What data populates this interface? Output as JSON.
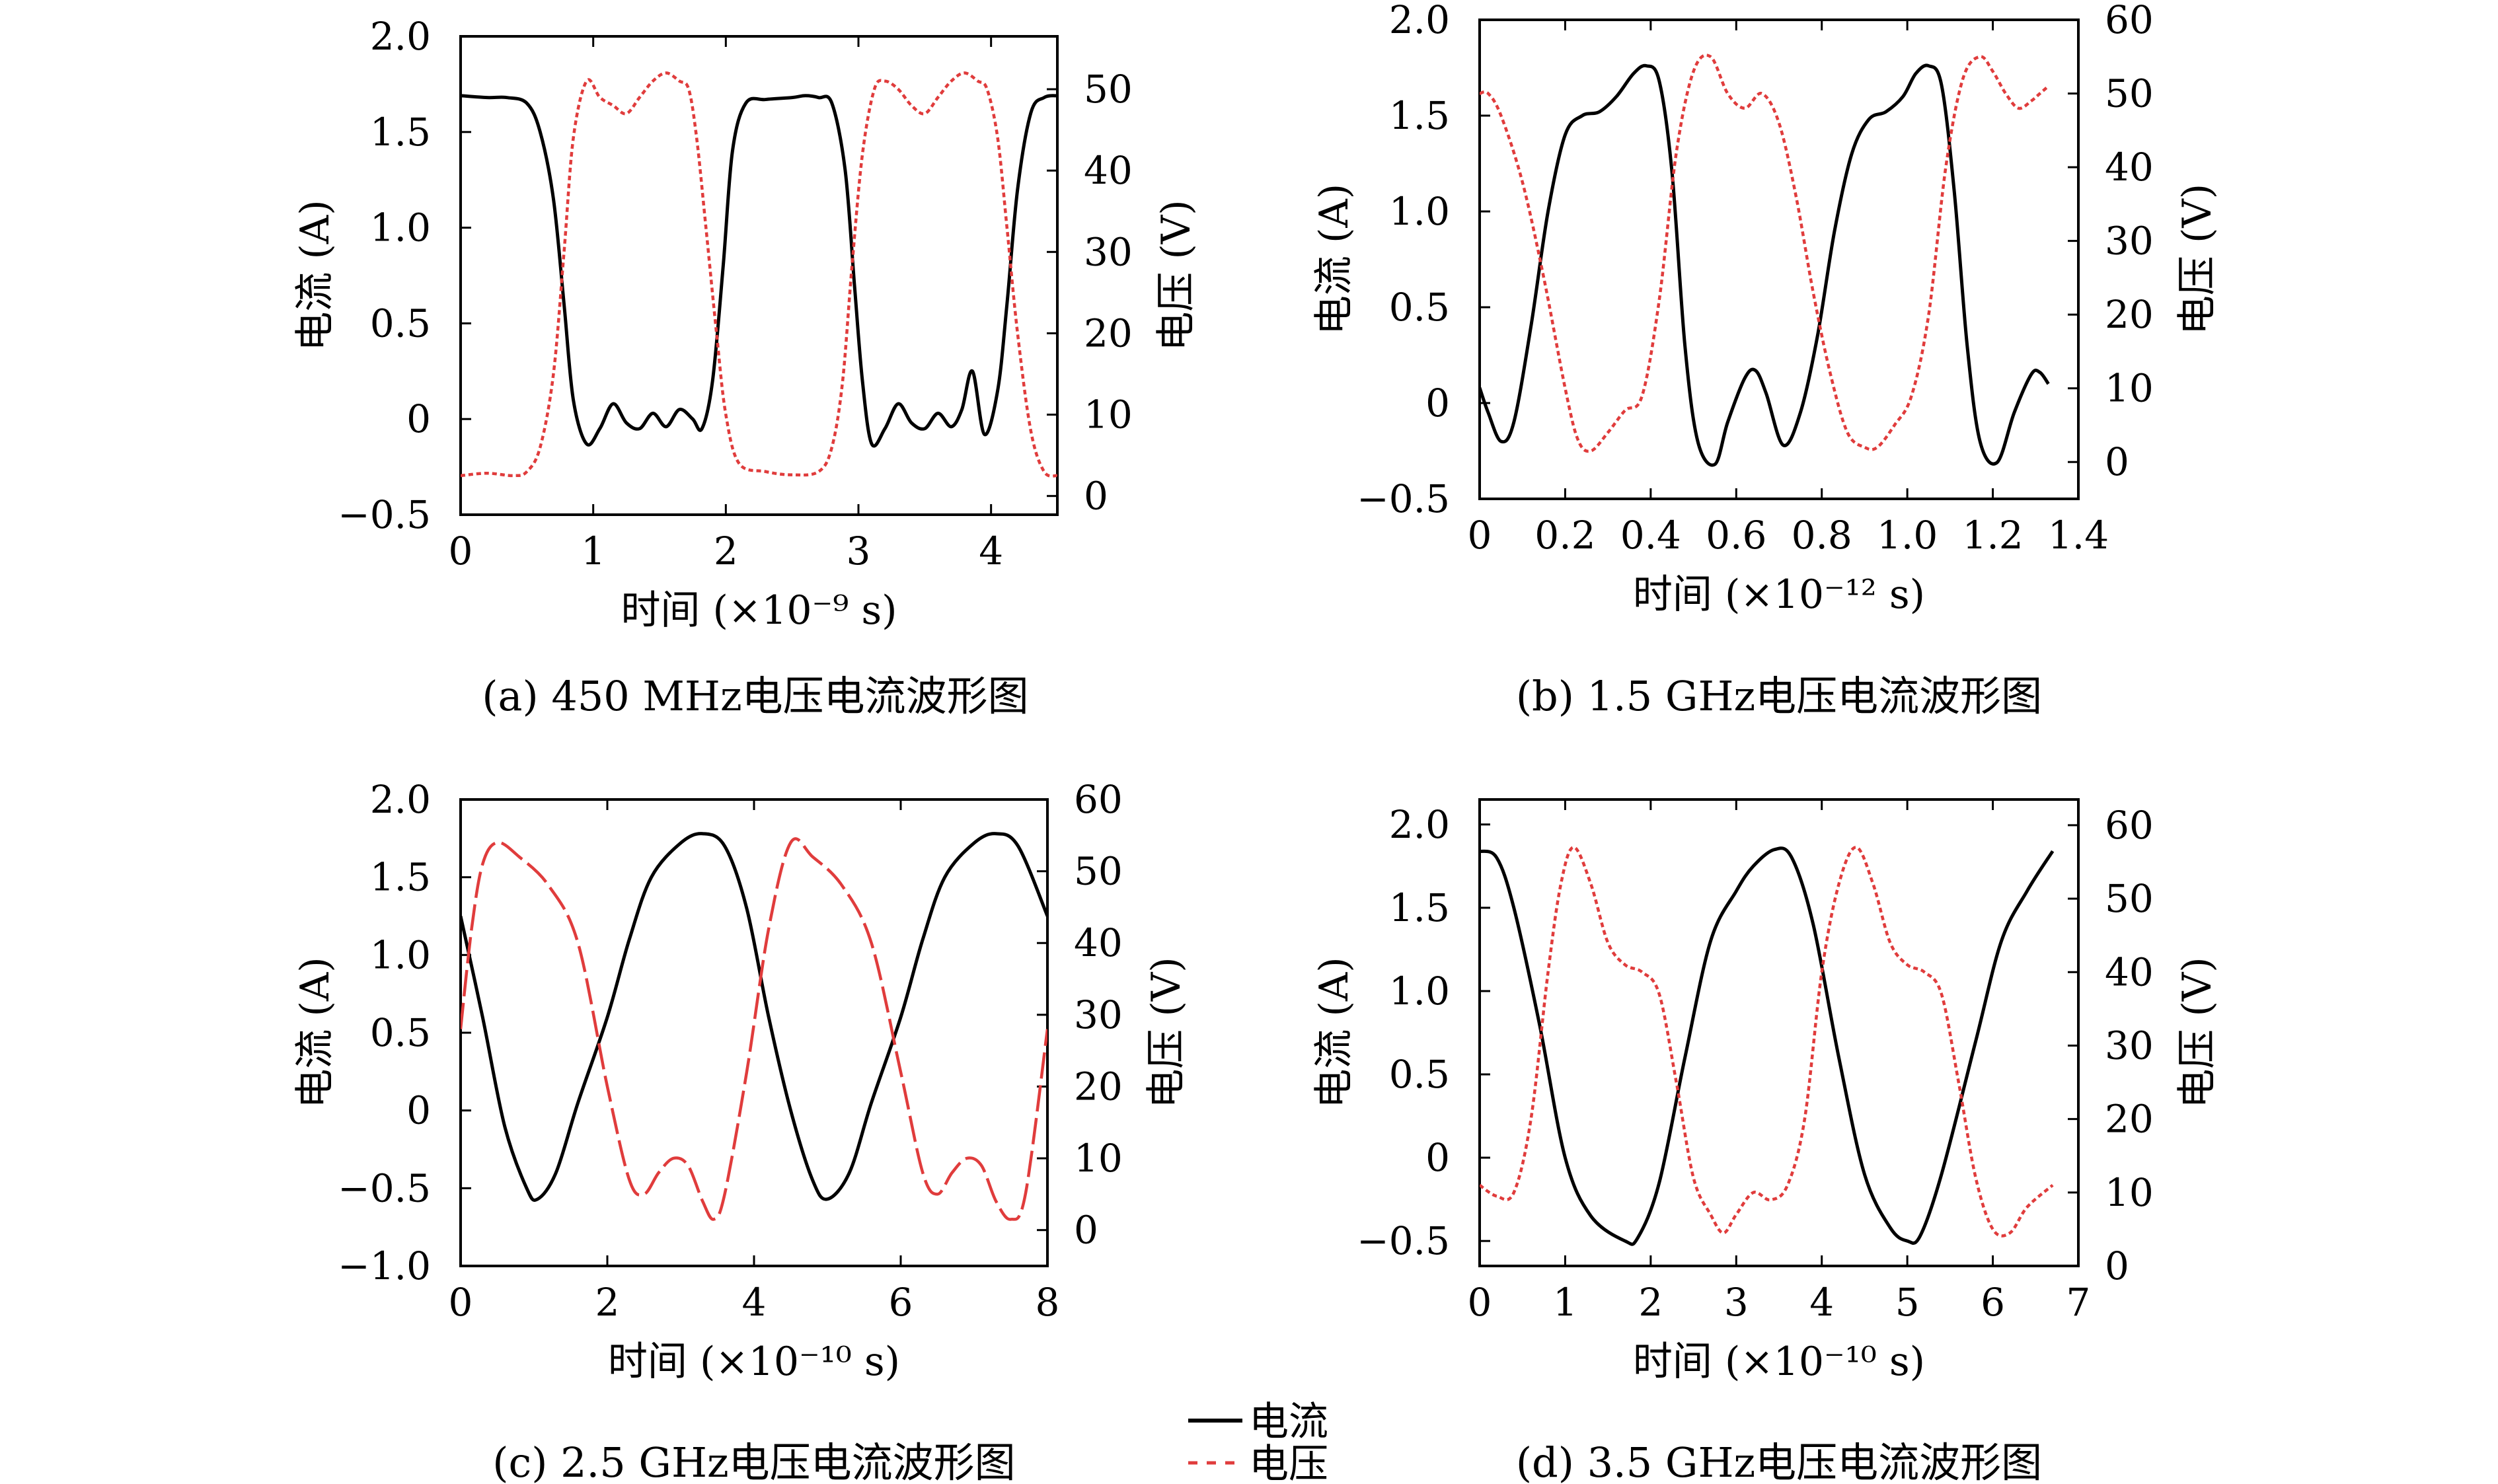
{
  "legend": {
    "current": "电流",
    "voltage": "电压"
  },
  "colors": {
    "current": "#000000",
    "voltage": "#e03c3c"
  },
  "chart_data": [
    {
      "type": "line",
      "caption": "(a) 450 MHz电压电流波形图",
      "xlabel": "时间 (×10⁻⁹ s)",
      "ylabel_left": "电流 (A)",
      "ylabel_right": "电压 (V)",
      "xlim": [
        0,
        4.5
      ],
      "ylim_left": [
        -0.5,
        2.0
      ],
      "ylim_right": [
        -2.3,
        56.5
      ],
      "xticks": [
        "0",
        "1",
        "2",
        "3",
        "4"
      ],
      "yticks_left": [
        "−0.5",
        "0",
        "0.5",
        "1.0",
        "1.5",
        "2.0"
      ],
      "yticks_right": [
        "0",
        "10",
        "20",
        "30",
        "40",
        "50"
      ],
      "series": [
        {
          "name": "电流",
          "axis": "left",
          "style": "solid",
          "x": [
            0,
            0.2,
            0.35,
            0.5,
            0.6,
            0.7,
            0.78,
            0.85,
            0.95,
            1.05,
            1.15,
            1.25,
            1.35,
            1.45,
            1.55,
            1.65,
            1.75,
            1.82,
            1.9,
            1.98,
            2.05,
            2.15,
            2.3,
            2.5,
            2.6,
            2.7,
            2.8,
            2.9,
            2.97,
            3.03,
            3.1,
            3.2,
            3.3,
            3.4,
            3.5,
            3.6,
            3.7,
            3.78,
            3.86,
            3.95,
            4.05,
            4.12,
            4.2,
            4.3,
            4.4,
            4.5
          ],
          "y": [
            1.69,
            1.68,
            1.68,
            1.65,
            1.5,
            1.15,
            0.6,
            0.1,
            -0.13,
            -0.05,
            0.08,
            -0.02,
            -0.05,
            0.03,
            -0.04,
            0.05,
            0,
            -0.05,
            0.2,
            0.8,
            1.4,
            1.65,
            1.67,
            1.68,
            1.69,
            1.68,
            1.65,
            1.3,
            0.7,
            0.2,
            -0.13,
            -0.05,
            0.08,
            -0.02,
            -0.05,
            0.03,
            -0.04,
            0.05,
            0.25,
            -0.08,
            0.15,
            0.6,
            1.2,
            1.6,
            1.68,
            1.69
          ]
        },
        {
          "name": "电压",
          "axis": "right",
          "style": "dotted",
          "x": [
            0,
            0.2,
            0.4,
            0.5,
            0.6,
            0.7,
            0.78,
            0.85,
            0.95,
            1.05,
            1.15,
            1.25,
            1.35,
            1.45,
            1.55,
            1.65,
            1.72,
            1.78,
            1.85,
            1.93,
            2.0,
            2.1,
            2.3,
            2.5,
            2.7,
            2.8,
            2.88,
            2.95,
            3.03,
            3.12,
            3.2,
            3.3,
            3.4,
            3.5,
            3.6,
            3.7,
            3.8,
            3.9,
            3.97,
            4.05,
            4.12,
            4.2,
            4.3,
            4.4,
            4.5
          ],
          "y": [
            2.5,
            2.8,
            2.5,
            3.0,
            6,
            15,
            30,
            44,
            51,
            49,
            48,
            47,
            49,
            51,
            52,
            51,
            50,
            44,
            33,
            20,
            10,
            4,
            3,
            2.6,
            3,
            6,
            14,
            28,
            42,
            50,
            51,
            50,
            48,
            47,
            49,
            51,
            52,
            51,
            50,
            44,
            33,
            20,
            8,
            3,
            2.5
          ]
        }
      ]
    },
    {
      "type": "line",
      "caption": "(b) 1.5 GHz电压电流波形图",
      "xlabel": "时间 (×10⁻¹² s)",
      "ylabel_left": "电流 (A)",
      "ylabel_right": "电压 (V)",
      "xlim": [
        0,
        1.4
      ],
      "ylim_left": [
        -0.5,
        2.0
      ],
      "ylim_right": [
        -5,
        60
      ],
      "xticks": [
        "0",
        "0.2",
        "0.4",
        "0.6",
        "0.8",
        "1.0",
        "1.2",
        "1.4"
      ],
      "yticks_left": [
        "−0.5",
        "0",
        "0.5",
        "1.0",
        "1.5",
        "2.0"
      ],
      "yticks_right": [
        "0",
        "10",
        "20",
        "30",
        "40",
        "50",
        "60"
      ],
      "series": [
        {
          "name": "电流",
          "axis": "left",
          "style": "solid",
          "x": [
            0,
            0.02,
            0.05,
            0.08,
            0.12,
            0.16,
            0.2,
            0.24,
            0.28,
            0.32,
            0.36,
            0.39,
            0.42,
            0.45,
            0.48,
            0.51,
            0.55,
            0.58,
            0.62,
            0.645,
            0.67,
            0.71,
            0.75,
            0.79,
            0.83,
            0.87,
            0.91,
            0.95,
            0.99,
            1.02,
            1.05,
            1.08,
            1.11,
            1.14,
            1.17,
            1.21,
            1.25,
            1.29,
            1.31,
            1.33
          ],
          "y": [
            0.08,
            -0.05,
            -0.2,
            -0.1,
            0.4,
            1.0,
            1.4,
            1.5,
            1.52,
            1.6,
            1.72,
            1.76,
            1.68,
            1.2,
            0.3,
            -0.2,
            -0.32,
            -0.1,
            0.13,
            0.17,
            0.05,
            -0.22,
            -0.05,
            0.35,
            0.9,
            1.3,
            1.48,
            1.52,
            1.6,
            1.72,
            1.76,
            1.66,
            1.1,
            0.3,
            -0.2,
            -0.31,
            -0.05,
            0.15,
            0.16,
            0.1
          ]
        },
        {
          "name": "电压",
          "axis": "right",
          "style": "dotted",
          "x": [
            0,
            0.02,
            0.05,
            0.1,
            0.15,
            0.2,
            0.23,
            0.26,
            0.3,
            0.34,
            0.38,
            0.42,
            0.46,
            0.5,
            0.54,
            0.58,
            0.62,
            0.66,
            0.7,
            0.74,
            0.78,
            0.82,
            0.86,
            0.9,
            0.93,
            0.97,
            1.01,
            1.05,
            1.09,
            1.13,
            1.17,
            1.2,
            1.23,
            1.26,
            1.29,
            1.31,
            1.33
          ],
          "y": [
            50,
            50,
            47,
            38,
            25,
            10,
            3,
            1.5,
            4,
            7,
            9,
            22,
            42,
            53,
            55,
            50,
            48,
            50,
            46,
            36,
            23,
            12,
            4,
            2,
            2,
            5,
            9,
            20,
            40,
            52,
            55,
            53,
            50,
            48,
            49,
            50,
            51
          ]
        }
      ]
    },
    {
      "type": "line",
      "caption": "(c) 2.5 GHz电压电流波形图",
      "xlabel": "时间 (×10⁻¹⁰ s)",
      "ylabel_left": "电流 (A)",
      "ylabel_right": "电压 (V)",
      "xlim": [
        0,
        8
      ],
      "ylim_left": [
        -1.0,
        2.0
      ],
      "ylim_right": [
        -5,
        60
      ],
      "xticks": [
        "0",
        "2",
        "4",
        "6",
        "8"
      ],
      "yticks_left": [
        "−1.0",
        "−0.5",
        "0",
        "0.5",
        "1.0",
        "1.5",
        "2.0"
      ],
      "yticks_right": [
        "0",
        "10",
        "20",
        "30",
        "40",
        "50",
        "60"
      ],
      "series": [
        {
          "name": "电流",
          "axis": "left",
          "style": "solid",
          "x": [
            0,
            0.3,
            0.6,
            0.9,
            1.05,
            1.3,
            1.6,
            2.0,
            2.3,
            2.6,
            3.0,
            3.3,
            3.6,
            3.9,
            4.2,
            4.5,
            4.8,
            5.0,
            5.3,
            5.6,
            6.0,
            6.3,
            6.6,
            7.0,
            7.3,
            7.6,
            8.0
          ],
          "y": [
            1.25,
            0.6,
            -0.1,
            -0.5,
            -0.57,
            -0.4,
            0.05,
            0.6,
            1.1,
            1.5,
            1.72,
            1.78,
            1.7,
            1.3,
            0.6,
            0,
            -0.45,
            -0.57,
            -0.4,
            0.05,
            0.6,
            1.1,
            1.5,
            1.72,
            1.78,
            1.7,
            1.25
          ]
        },
        {
          "name": "电压",
          "axis": "right",
          "style": "dashed",
          "x": [
            0,
            0.15,
            0.3,
            0.5,
            0.8,
            1.2,
            1.6,
            2.0,
            2.3,
            2.5,
            2.7,
            2.9,
            3.1,
            3.3,
            3.45,
            3.6,
            3.9,
            4.2,
            4.5,
            4.8,
            5.2,
            5.6,
            6.0,
            6.3,
            6.5,
            6.7,
            6.9,
            7.1,
            7.3,
            7.5,
            7.7,
            8.0
          ],
          "y": [
            28,
            42,
            51,
            54,
            52,
            48,
            40,
            20,
            7,
            5,
            8,
            10,
            9,
            4,
            1.5,
            5,
            22,
            42,
            54,
            52,
            48,
            40,
            22,
            8,
            5,
            8,
            10,
            9,
            4,
            1.5,
            5,
            28
          ]
        }
      ]
    },
    {
      "type": "line",
      "caption": "(d) 3.5 GHz电压电流波形图",
      "xlabel": "时间 (×10⁻¹⁰ s)",
      "ylabel_left": "电流 (A)",
      "ylabel_right": "电压 (V)",
      "xlim": [
        0,
        7
      ],
      "ylim_left": [
        -0.65,
        2.15
      ],
      "ylim_right": [
        0,
        63.5
      ],
      "xticks": [
        "0",
        "1",
        "2",
        "3",
        "4",
        "5",
        "6",
        "7"
      ],
      "yticks_left": [
        "−0.5",
        "0",
        "0.5",
        "1.0",
        "1.5",
        "2.0"
      ],
      "yticks_right": [
        "0",
        "10",
        "20",
        "30",
        "40",
        "50",
        "60"
      ],
      "series": [
        {
          "name": "电流",
          "axis": "left",
          "style": "solid",
          "x": [
            0,
            0.2,
            0.4,
            0.7,
            1.0,
            1.3,
            1.7,
            1.85,
            2.1,
            2.4,
            2.7,
            3.0,
            3.2,
            3.45,
            3.65,
            3.9,
            4.2,
            4.5,
            4.8,
            5.0,
            5.15,
            5.4,
            5.8,
            6.1,
            6.4,
            6.7
          ],
          "y": [
            1.84,
            1.8,
            1.5,
            0.8,
            0,
            -0.35,
            -0.5,
            -0.48,
            -0.15,
            0.6,
            1.3,
            1.6,
            1.75,
            1.85,
            1.8,
            1.4,
            0.6,
            -0.1,
            -0.42,
            -0.5,
            -0.47,
            -0.1,
            0.7,
            1.3,
            1.6,
            1.84
          ]
        },
        {
          "name": "电压",
          "axis": "right",
          "style": "dotted",
          "x": [
            0,
            0.2,
            0.4,
            0.6,
            0.8,
            0.95,
            1.1,
            1.3,
            1.5,
            1.7,
            1.9,
            2.1,
            2.3,
            2.5,
            2.7,
            2.85,
            3.0,
            3.2,
            3.4,
            3.6,
            3.8,
            4.0,
            4.2,
            4.4,
            4.6,
            4.8,
            5.0,
            5.2,
            5.4,
            5.6,
            5.8,
            6.0,
            6.2,
            6.4,
            6.7
          ],
          "y": [
            11,
            9.5,
            10,
            20,
            40,
            52,
            57,
            52,
            44,
            41,
            40,
            37,
            25,
            12,
            7,
            4.5,
            7,
            10,
            9,
            11,
            20,
            40,
            52,
            57,
            52,
            44,
            41,
            40,
            37,
            25,
            12,
            5,
            4.5,
            8,
            11
          ]
        }
      ]
    }
  ]
}
